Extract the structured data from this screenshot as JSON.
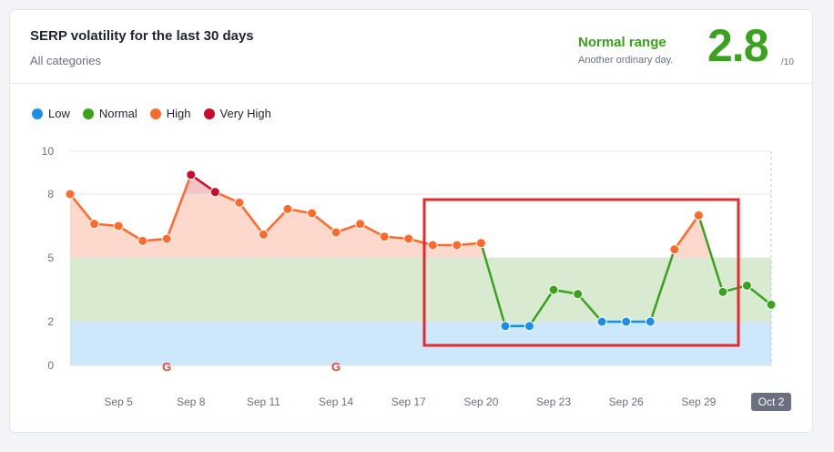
{
  "header": {
    "title": "SERP volatility for the last 30 days",
    "subtitle": "All categories",
    "range_label": "Normal range",
    "range_desc": "Another ordinary day.",
    "score": "2.8",
    "score_max": "/10"
  },
  "legend": [
    {
      "label": "Low",
      "color": "#1a8fe8"
    },
    {
      "label": "Normal",
      "color": "#3aa21d"
    },
    {
      "label": "High",
      "color": "#ff6a2b"
    },
    {
      "label": "Very High",
      "color": "#cc0a2c"
    }
  ],
  "colors": {
    "low": "#1a8fe8",
    "normal": "#3aa21d",
    "high": "#ff6a2b",
    "very_high": "#cc0a2c",
    "low_fill": "#cde7fb",
    "normal_fill": "#d8ebd1",
    "high_fill": "#fcd9cc",
    "very_high_fill": "#f3c4c6",
    "highlight_box": "#e8282b",
    "google_icon": "#ea4335"
  },
  "chart_data": {
    "type": "line",
    "y_ticks": [
      "0",
      "2",
      "5",
      "8",
      "10"
    ],
    "y_tick_values": [
      0,
      2,
      5,
      8,
      10
    ],
    "ylim": [
      0,
      10
    ],
    "x_labels": [
      "Sep 5",
      "Sep 8",
      "Sep 11",
      "Sep 14",
      "Sep 17",
      "Sep 20",
      "Sep 23",
      "Sep 26",
      "Sep 29",
      "Oct 2"
    ],
    "x_label_days": [
      5,
      8,
      11,
      14,
      17,
      20,
      23,
      26,
      29,
      32
    ],
    "highlighted_label": "Oct 2",
    "series": [
      {
        "x": [
          3,
          4,
          5,
          6,
          7,
          8,
          9,
          10,
          11,
          12,
          13,
          14,
          15,
          16,
          17,
          18,
          19,
          20,
          21,
          22,
          23,
          24,
          25,
          26,
          27,
          28,
          29,
          30,
          31,
          32
        ],
        "y": [
          8.0,
          6.6,
          6.5,
          5.8,
          5.9,
          8.9,
          8.1,
          7.6,
          6.1,
          7.3,
          7.1,
          6.2,
          6.6,
          6.0,
          5.9,
          5.6,
          5.6,
          5.7,
          1.8,
          1.8,
          3.5,
          3.3,
          2.0,
          2.0,
          2.0,
          5.4,
          7.0,
          3.4,
          3.7,
          2.8
        ]
      }
    ],
    "google_update_markers_days": [
      7,
      14
    ],
    "thresholds": {
      "low_max": 2,
      "normal_max": 5,
      "high_max": 8
    }
  }
}
